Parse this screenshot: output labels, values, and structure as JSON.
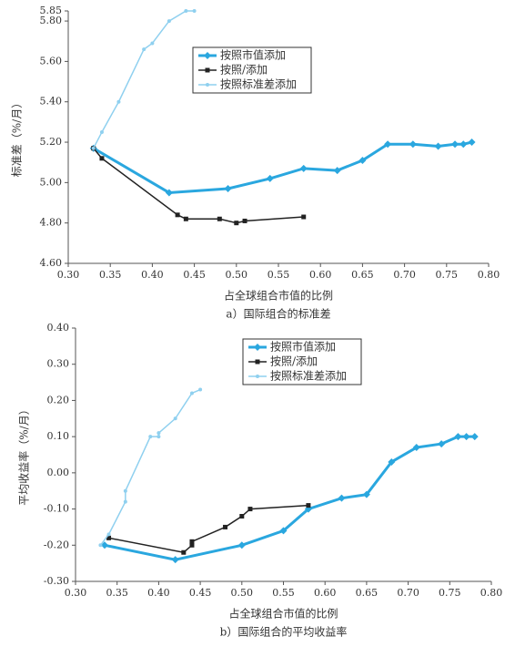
{
  "chart_data": [
    {
      "type": "line",
      "xlabel": "占全球组合市值的比例",
      "ylabel": "标准差（%/月）",
      "caption": "a）国际组合的标准差",
      "xlim": [
        0.3,
        0.8
      ],
      "xticks": [
        {
          "value": 0.3,
          "label": "0.30"
        },
        0.35,
        {
          "value": 0.4,
          "label": "0.40"
        },
        0.45,
        {
          "value": 0.5,
          "label": "0.50"
        },
        0.55,
        {
          "value": 0.6,
          "label": "0.60"
        },
        0.65,
        {
          "value": 0.7,
          "label": "0.70"
        },
        0.75,
        {
          "value": 0.8,
          "label": "0.80"
        }
      ],
      "ylim": [
        4.6,
        5.85
      ],
      "yticks": [
        {
          "value": 4.6,
          "label": "4.60"
        },
        {
          "value": 4.8,
          "label": "4.80"
        },
        {
          "value": 5.0,
          "label": "5.00"
        },
        {
          "value": 5.2,
          "label": "5.20"
        },
        {
          "value": 5.4,
          "label": "5.40"
        },
        {
          "value": 5.6,
          "label": "5.60"
        },
        {
          "value": 5.8,
          "label": "5.80"
        },
        5.85
      ],
      "series": [
        {
          "name": "按照市值添加",
          "color": "#2aa7df",
          "marker": "diamond",
          "x": [
            0.33,
            0.42,
            0.49,
            0.54,
            0.58,
            0.62,
            0.65,
            0.68,
            0.71,
            0.74,
            0.76,
            0.77,
            0.78
          ],
          "values": [
            5.17,
            4.95,
            4.97,
            5.02,
            5.07,
            5.06,
            5.11,
            5.19,
            5.19,
            5.18,
            5.19,
            5.19,
            5.2
          ]
        },
        {
          "name": "按照/添加",
          "color": "#222222",
          "marker": "square",
          "x": [
            0.33,
            0.34,
            0.43,
            0.44,
            0.48,
            0.5,
            0.51,
            0.58
          ],
          "values": [
            5.17,
            5.12,
            4.84,
            4.82,
            4.82,
            4.8,
            4.81,
            4.83
          ]
        },
        {
          "name": "按照标准差添加",
          "color": "#8fd0ef",
          "marker": "circle",
          "x": [
            0.33,
            0.34,
            0.36,
            0.39,
            0.4,
            0.42,
            0.44,
            0.45
          ],
          "values": [
            5.17,
            5.25,
            5.4,
            5.66,
            5.69,
            5.8,
            5.85,
            5.85
          ]
        }
      ]
    },
    {
      "type": "line",
      "xlabel": "占全球组合市值的比例",
      "ylabel": "平均收益率（%/月）",
      "caption": "b）国际组合的平均收益率",
      "xlim": [
        0.3,
        0.8
      ],
      "xticks": [
        {
          "value": 0.3,
          "label": "0.30"
        },
        0.35,
        {
          "value": 0.4,
          "label": "0.40"
        },
        0.45,
        {
          "value": 0.5,
          "label": "0.50"
        },
        0.55,
        {
          "value": 0.6,
          "label": "0.60"
        },
        0.65,
        {
          "value": 0.7,
          "label": "0.70"
        },
        0.75,
        {
          "value": 0.8,
          "label": "0.80"
        }
      ],
      "ylim": [
        -0.3,
        0.4
      ],
      "yticks": [
        {
          "value": -0.3,
          "label": "-0.30"
        },
        {
          "value": -0.2,
          "label": "-0.20"
        },
        {
          "value": -0.1,
          "label": "-0.10"
        },
        {
          "value": 0,
          "label": "0.00"
        },
        {
          "value": 0.1,
          "label": "0.10"
        },
        {
          "value": 0.2,
          "label": "0.20"
        },
        {
          "value": 0.3,
          "label": "0.30"
        },
        {
          "value": 0.4,
          "label": "0.40"
        }
      ],
      "series": [
        {
          "name": "按照市值添加",
          "color": "#2aa7df",
          "marker": "diamond",
          "x": [
            0.335,
            0.42,
            0.5,
            0.55,
            0.58,
            0.62,
            0.65,
            0.68,
            0.71,
            0.74,
            0.76,
            0.77,
            0.78
          ],
          "values": [
            -0.2,
            -0.24,
            -0.2,
            -0.16,
            -0.1,
            -0.07,
            -0.06,
            0.03,
            0.07,
            0.08,
            0.1,
            0.1,
            0.1
          ]
        },
        {
          "name": "按照/添加",
          "color": "#222222",
          "marker": "square",
          "x": [
            0.34,
            0.43,
            0.44,
            0.44,
            0.48,
            0.5,
            0.51,
            0.58
          ],
          "values": [
            -0.18,
            -0.22,
            -0.2,
            -0.19,
            -0.15,
            -0.12,
            -0.1,
            -0.09
          ]
        },
        {
          "name": "按照标准差添加",
          "color": "#8fd0ef",
          "marker": "circle",
          "x": [
            0.33,
            0.34,
            0.36,
            0.36,
            0.39,
            0.4,
            0.4,
            0.42,
            0.44,
            0.45
          ],
          "values": [
            -0.2,
            -0.17,
            -0.08,
            -0.05,
            0.1,
            0.1,
            0.11,
            0.15,
            0.22,
            0.23
          ]
        }
      ]
    }
  ]
}
